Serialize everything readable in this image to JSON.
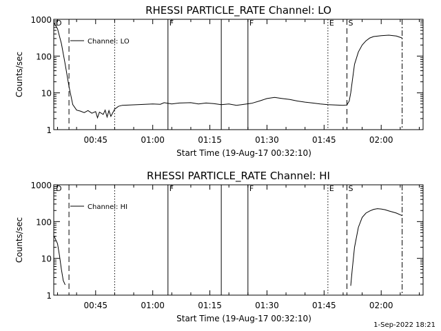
{
  "timestamp": "1-Sep-2022 18:21",
  "chart_data": [
    {
      "type": "line",
      "title": "RHESSI PARTICLE_RATE Channel: LO",
      "xlabel": "Start Time (19-Aug-17 00:32:10)",
      "ylabel": "Counts/sec",
      "yscale": "log",
      "ylim": [
        1,
        1000
      ],
      "xlim_min": [
        34.0,
        131.0
      ],
      "x_ticks": [
        {
          "value": 45,
          "label": "00:45"
        },
        {
          "value": 60,
          "label": "01:00"
        },
        {
          "value": 75,
          "label": "01:15"
        },
        {
          "value": 90,
          "label": "01:30"
        },
        {
          "value": 105,
          "label": "01:45"
        },
        {
          "value": 120,
          "label": "02:00"
        }
      ],
      "y_ticks": [
        {
          "value": 1,
          "label": "1"
        },
        {
          "value": 10,
          "label": "10"
        },
        {
          "value": 100,
          "label": "100"
        },
        {
          "value": 1000,
          "label": "1000"
        }
      ],
      "legend": {
        "label": "Channel: LO",
        "placement": "top-left"
      },
      "markers": [
        {
          "x": 34.2,
          "style": "none",
          "label": "D"
        },
        {
          "x": 38.0,
          "style": "dashed",
          "label": ""
        },
        {
          "x": 50.0,
          "style": "dotted",
          "label": ""
        },
        {
          "x": 64.0,
          "style": "solid",
          "label": "F"
        },
        {
          "x": 78.0,
          "style": "solid",
          "label": ""
        },
        {
          "x": 85.0,
          "style": "solid",
          "label": "F"
        },
        {
          "x": 106.0,
          "style": "dotted",
          "label": "E"
        },
        {
          "x": 111.0,
          "style": "dashed",
          "label": "S"
        },
        {
          "x": 125.5,
          "style": "dashdot",
          "label": ""
        }
      ],
      "series": [
        {
          "segments": [
            [
              [
                34.1,
                800
              ],
              [
                35.0,
                550
              ],
              [
                36.0,
                220
              ],
              [
                37.0,
                60
              ],
              [
                38.0,
                15
              ],
              [
                39.0,
                4.8
              ],
              [
                40.0,
                3.4
              ],
              [
                41.0,
                3.2
              ],
              [
                42.0,
                2.9
              ],
              [
                43.0,
                3.3
              ],
              [
                44.0,
                2.8
              ],
              [
                45.0,
                3.1
              ],
              [
                45.5,
                2.1
              ],
              [
                46.0,
                3.0
              ],
              [
                47.0,
                2.6
              ],
              [
                47.5,
                3.4
              ],
              [
                48.0,
                2.2
              ],
              [
                48.5,
                3.3
              ],
              [
                49.0,
                2.3
              ],
              [
                50.0,
                3.6
              ],
              [
                51.0,
                4.3
              ],
              [
                52.0,
                4.6
              ],
              [
                54.0,
                4.7
              ],
              [
                56.0,
                4.8
              ],
              [
                58.0,
                4.9
              ],
              [
                60.0,
                5.0
              ],
              [
                62.0,
                4.9
              ],
              [
                63.0,
                5.4
              ],
              [
                65.0,
                5.0
              ],
              [
                67.0,
                5.3
              ],
              [
                70.0,
                5.4
              ],
              [
                72.0,
                5.0
              ],
              [
                74.0,
                5.3
              ],
              [
                76.0,
                5.1
              ],
              [
                78.0,
                4.8
              ],
              [
                80.0,
                5.0
              ],
              [
                82.0,
                4.6
              ],
              [
                84.0,
                4.9
              ],
              [
                86.0,
                5.2
              ],
              [
                88.0,
                6.0
              ],
              [
                90.0,
                7.0
              ],
              [
                92.0,
                7.5
              ],
              [
                94.0,
                7.0
              ],
              [
                96.0,
                6.6
              ],
              [
                98.0,
                6.0
              ],
              [
                100.0,
                5.6
              ],
              [
                102.0,
                5.3
              ],
              [
                104.0,
                5.0
              ],
              [
                106.0,
                4.8
              ],
              [
                108.0,
                4.7
              ],
              [
                110.0,
                4.6
              ],
              [
                111.0,
                4.7
              ],
              [
                111.6,
                6.0
              ],
              [
                112.0,
                10
              ],
              [
                112.5,
                25
              ],
              [
                113.0,
                60
              ],
              [
                114.0,
                130
              ],
              [
                115.0,
                200
              ],
              [
                116.0,
                260
              ],
              [
                117.0,
                310
              ],
              [
                118.0,
                340
              ],
              [
                120.0,
                360
              ],
              [
                122.0,
                370
              ],
              [
                124.0,
                350
              ],
              [
                125.5,
                310
              ]
            ]
          ]
        }
      ]
    },
    {
      "type": "line",
      "title": "RHESSI PARTICLE_RATE Channel: HI",
      "xlabel": "Start Time (19-Aug-17 00:32:10)",
      "ylabel": "Counts/sec",
      "yscale": "log",
      "ylim": [
        1,
        1000
      ],
      "xlim_min": [
        34.0,
        131.0
      ],
      "x_ticks": [
        {
          "value": 45,
          "label": "00:45"
        },
        {
          "value": 60,
          "label": "01:00"
        },
        {
          "value": 75,
          "label": "01:15"
        },
        {
          "value": 90,
          "label": "01:30"
        },
        {
          "value": 105,
          "label": "01:45"
        },
        {
          "value": 120,
          "label": "02:00"
        }
      ],
      "y_ticks": [
        {
          "value": 1,
          "label": "1"
        },
        {
          "value": 10,
          "label": "10"
        },
        {
          "value": 100,
          "label": "100"
        },
        {
          "value": 1000,
          "label": "1000"
        }
      ],
      "legend": {
        "label": "Channel: HI",
        "placement": "top-left"
      },
      "markers": [
        {
          "x": 34.2,
          "style": "none",
          "label": "D"
        },
        {
          "x": 38.0,
          "style": "dashed",
          "label": ""
        },
        {
          "x": 50.0,
          "style": "dotted",
          "label": ""
        },
        {
          "x": 64.0,
          "style": "solid",
          "label": "F"
        },
        {
          "x": 78.0,
          "style": "solid",
          "label": ""
        },
        {
          "x": 85.0,
          "style": "solid",
          "label": "F"
        },
        {
          "x": 106.0,
          "style": "dotted",
          "label": "E"
        },
        {
          "x": 111.0,
          "style": "dashed",
          "label": "S"
        },
        {
          "x": 125.5,
          "style": "dashdot",
          "label": ""
        }
      ],
      "series": [
        {
          "segments": [
            [
              [
                34.1,
                40
              ],
              [
                35.0,
                25
              ],
              [
                35.5,
                12
              ],
              [
                36.0,
                5
              ],
              [
                36.5,
                2.5
              ],
              [
                37.0,
                1.9
              ]
            ],
            [
              [
                112.0,
                1.8
              ],
              [
                112.4,
                5
              ],
              [
                113.0,
                20
              ],
              [
                114.0,
                70
              ],
              [
                115.0,
                130
              ],
              [
                116.0,
                170
              ],
              [
                117.0,
                195
              ],
              [
                118.0,
                215
              ],
              [
                119.0,
                225
              ],
              [
                120.0,
                220
              ],
              [
                121.0,
                210
              ],
              [
                122.0,
                195
              ],
              [
                124.0,
                170
              ],
              [
                125.5,
                145
              ]
            ]
          ]
        }
      ]
    }
  ]
}
